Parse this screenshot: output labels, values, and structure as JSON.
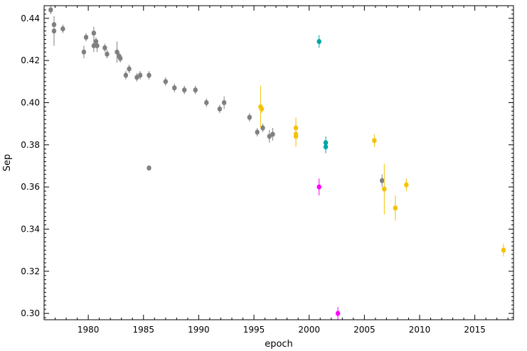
{
  "chart_data": {
    "type": "scatter",
    "title": "",
    "xlabel": "epoch",
    "ylabel": "Sep",
    "xlim": [
      1976.0,
      2018.5
    ],
    "ylim": [
      0.297,
      0.446
    ],
    "xticks": [
      1980,
      1985,
      1990,
      1995,
      2000,
      2005,
      2010,
      2015
    ],
    "xtick_labels": [
      "1980",
      "1985",
      "1990",
      "1995",
      "2000",
      "2005",
      "2010",
      "2015"
    ],
    "yticks": [
      0.3,
      0.32,
      0.34,
      0.36,
      0.38,
      0.4,
      0.42,
      0.44
    ],
    "ytick_labels": [
      "0.30",
      "0.32",
      "0.34",
      "0.36",
      "0.38",
      "0.40",
      "0.42",
      "0.44"
    ],
    "grid": false,
    "series": [
      {
        "color": "#808080",
        "points": [
          {
            "x": 1976.6,
            "y": 0.444,
            "err": 0.002
          },
          {
            "x": 1976.9,
            "y": 0.437,
            "err": 0.002
          },
          {
            "x": 1976.9,
            "y": 0.434,
            "err": 0.007
          },
          {
            "x": 1977.7,
            "y": 0.435,
            "err": 0.002
          },
          {
            "x": 1979.6,
            "y": 0.424,
            "err": 0.003
          },
          {
            "x": 1979.8,
            "y": 0.431,
            "err": 0.002
          },
          {
            "x": 1980.5,
            "y": 0.433,
            "err": 0.003
          },
          {
            "x": 1980.5,
            "y": 0.427,
            "err": 0.003
          },
          {
            "x": 1980.7,
            "y": 0.429,
            "err": 0.002
          },
          {
            "x": 1980.8,
            "y": 0.427,
            "err": 0.003
          },
          {
            "x": 1981.5,
            "y": 0.426,
            "err": 0.002
          },
          {
            "x": 1981.7,
            "y": 0.423,
            "err": 0.002
          },
          {
            "x": 1982.6,
            "y": 0.424,
            "err": 0.005
          },
          {
            "x": 1982.8,
            "y": 0.422,
            "err": 0.002
          },
          {
            "x": 1982.9,
            "y": 0.421,
            "err": 0.002
          },
          {
            "x": 1983.4,
            "y": 0.413,
            "err": 0.002
          },
          {
            "x": 1983.7,
            "y": 0.416,
            "err": 0.002
          },
          {
            "x": 1984.4,
            "y": 0.412,
            "err": 0.002
          },
          {
            "x": 1984.7,
            "y": 0.413,
            "err": 0.002
          },
          {
            "x": 1985.5,
            "y": 0.413,
            "err": 0.002
          },
          {
            "x": 1985.5,
            "y": 0.369,
            "err": 0.0005
          },
          {
            "x": 1987.0,
            "y": 0.41,
            "err": 0.002
          },
          {
            "x": 1987.8,
            "y": 0.407,
            "err": 0.002
          },
          {
            "x": 1988.7,
            "y": 0.406,
            "err": 0.002
          },
          {
            "x": 1989.7,
            "y": 0.406,
            "err": 0.002
          },
          {
            "x": 1990.7,
            "y": 0.4,
            "err": 0.002
          },
          {
            "x": 1991.9,
            "y": 0.397,
            "err": 0.002
          },
          {
            "x": 1992.3,
            "y": 0.4,
            "err": 0.003
          },
          {
            "x": 1994.6,
            "y": 0.393,
            "err": 0.002
          },
          {
            "x": 1995.3,
            "y": 0.386,
            "err": 0.002
          },
          {
            "x": 1995.8,
            "y": 0.388,
            "err": 0.002
          },
          {
            "x": 1996.4,
            "y": 0.384,
            "err": 0.003
          },
          {
            "x": 1996.7,
            "y": 0.385,
            "err": 0.003
          },
          {
            "x": 2006.6,
            "y": 0.363,
            "err": 0.003
          }
        ]
      },
      {
        "color": "#f5c200",
        "points": [
          {
            "x": 1995.6,
            "y": 0.398,
            "err": 0.01
          },
          {
            "x": 1995.7,
            "y": 0.397,
            "err": 0.002
          },
          {
            "x": 1998.8,
            "y": 0.388,
            "err": 0.005
          },
          {
            "x": 1998.8,
            "y": 0.385,
            "err": 0.006
          },
          {
            "x": 1998.8,
            "y": 0.384,
            "err": 0.002
          },
          {
            "x": 2005.9,
            "y": 0.382,
            "err": 0.003
          },
          {
            "x": 2006.8,
            "y": 0.359,
            "err": 0.012
          },
          {
            "x": 2007.8,
            "y": 0.35,
            "err": 0.006
          },
          {
            "x": 2008.8,
            "y": 0.361,
            "err": 0.003
          },
          {
            "x": 2017.6,
            "y": 0.33,
            "err": 0.003
          }
        ]
      },
      {
        "color": "#00a6a6",
        "points": [
          {
            "x": 2000.9,
            "y": 0.429,
            "err": 0.003
          },
          {
            "x": 2001.5,
            "y": 0.381,
            "err": 0.003
          },
          {
            "x": 2001.5,
            "y": 0.379,
            "err": 0.003
          }
        ]
      },
      {
        "color": "#ff00ff",
        "points": [
          {
            "x": 2000.9,
            "y": 0.36,
            "err": 0.004
          },
          {
            "x": 2002.6,
            "y": 0.3,
            "err": 0.003
          }
        ]
      }
    ]
  }
}
